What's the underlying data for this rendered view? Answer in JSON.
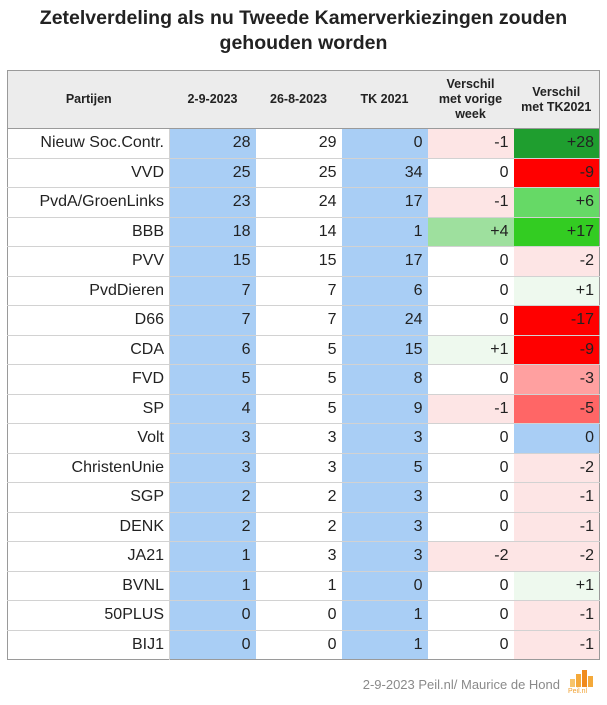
{
  "title_line1": "Zetelverdeling als nu Tweede Kamerverkiezingen zouden",
  "title_line2": "gehouden worden",
  "headers": {
    "party": "Partijen",
    "c1": "2-9-2023",
    "c2": "26-8-2023",
    "c3": "TK 2021",
    "c4_line1": "Verschil",
    "c4_line2": "met vorige",
    "c4_line3": "week",
    "c5_line1": "Verschil",
    "c5_line2": "met TK2021"
  },
  "colors": {
    "blue": "#a9cef5",
    "pos_strong": "#1f9e2f",
    "pos_bright": "#33cc22",
    "pos_mid": "#66d966",
    "pos_light": "#9ee09e",
    "pos_pale": "#eef9ee",
    "neg_strong": "#ff0000",
    "neg_mid": "#ff6666",
    "neg_light": "#ffa0a0",
    "neg_pale": "#fde5e5",
    "zero_diff": "#a9cef5"
  },
  "chart_data": {
    "type": "table",
    "title": "Zetelverdeling als nu Tweede Kamerverkiezingen zouden gehouden worden",
    "columns": [
      "Partijen",
      "2-9-2023",
      "26-8-2023",
      "TK 2021",
      "Verschil met vorige week",
      "Verschil met TK2021"
    ],
    "rows": [
      {
        "party": "Nieuw Soc.Contr.",
        "d1": "28",
        "d2": "29",
        "tk": "0",
        "w": "-1",
        "t": "+28"
      },
      {
        "party": "VVD",
        "d1": "25",
        "d2": "25",
        "tk": "34",
        "w": "0",
        "t": "-9"
      },
      {
        "party": "PvdA/GroenLinks",
        "d1": "23",
        "d2": "24",
        "tk": "17",
        "w": "-1",
        "t": "+6"
      },
      {
        "party": "BBB",
        "d1": "18",
        "d2": "14",
        "tk": "1",
        "w": "+4",
        "t": "+17"
      },
      {
        "party": "PVV",
        "d1": "15",
        "d2": "15",
        "tk": "17",
        "w": "0",
        "t": "-2"
      },
      {
        "party": "PvdDieren",
        "d1": "7",
        "d2": "7",
        "tk": "6",
        "w": "0",
        "t": "+1"
      },
      {
        "party": "D66",
        "d1": "7",
        "d2": "7",
        "tk": "24",
        "w": "0",
        "t": "-17"
      },
      {
        "party": "CDA",
        "d1": "6",
        "d2": "5",
        "tk": "15",
        "w": "+1",
        "t": "-9"
      },
      {
        "party": "FVD",
        "d1": "5",
        "d2": "5",
        "tk": "8",
        "w": "0",
        "t": "-3"
      },
      {
        "party": "SP",
        "d1": "4",
        "d2": "5",
        "tk": "9",
        "w": "-1",
        "t": "-5"
      },
      {
        "party": "Volt",
        "d1": "3",
        "d2": "3",
        "tk": "3",
        "w": "0",
        "t": "0"
      },
      {
        "party": "ChristenUnie",
        "d1": "3",
        "d2": "3",
        "tk": "5",
        "w": "0",
        "t": "-2"
      },
      {
        "party": "SGP",
        "d1": "2",
        "d2": "2",
        "tk": "3",
        "w": "0",
        "t": "-1"
      },
      {
        "party": "DENK",
        "d1": "2",
        "d2": "2",
        "tk": "3",
        "w": "0",
        "t": "-1"
      },
      {
        "party": "JA21",
        "d1": "1",
        "d2": "3",
        "tk": "3",
        "w": "-2",
        "t": "-2"
      },
      {
        "party": "BVNL",
        "d1": "1",
        "d2": "1",
        "tk": "0",
        "w": "0",
        "t": "+1"
      },
      {
        "party": "50PLUS",
        "d1": "0",
        "d2": "0",
        "tk": "1",
        "w": "0",
        "t": "-1"
      },
      {
        "party": "BIJ1",
        "d1": "0",
        "d2": "0",
        "tk": "1",
        "w": "0",
        "t": "-1"
      }
    ]
  },
  "footer": "2-9-2023 Peil.nl/ Maurice de Hond",
  "logo_text": "Peil.nl"
}
